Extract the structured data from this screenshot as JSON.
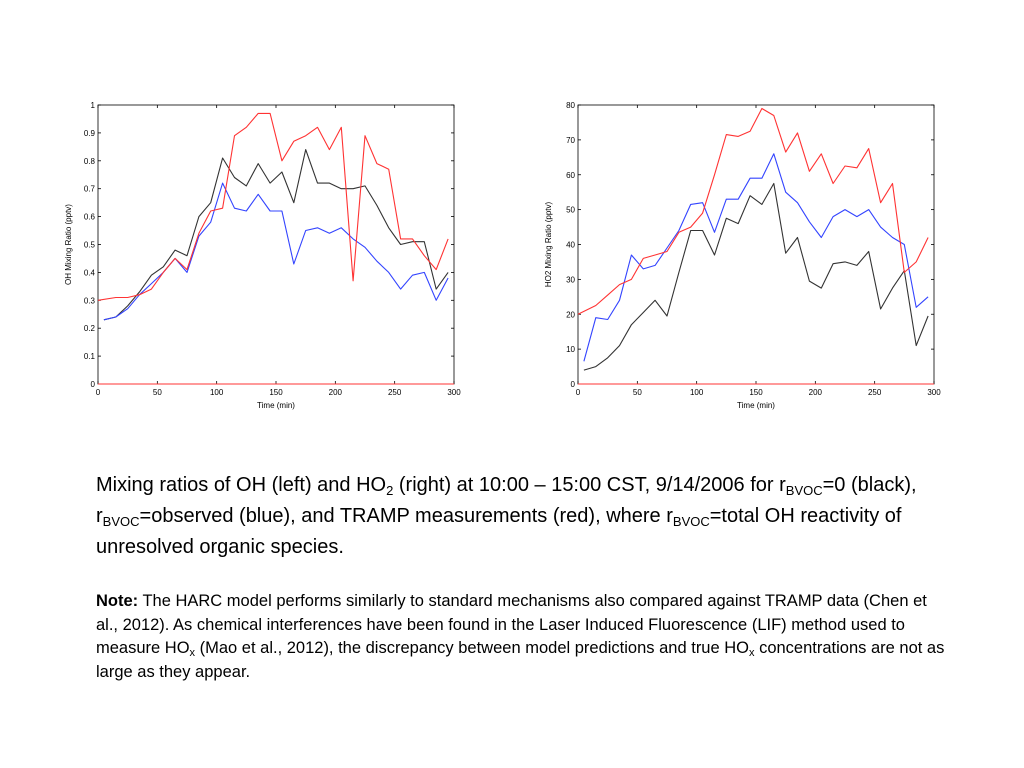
{
  "colors": {
    "black_series": "#333333",
    "blue_series": "#3344ff",
    "red_series": "#ff3333",
    "axis": "#000000"
  },
  "chart_data": [
    {
      "type": "line",
      "xlabel": "Time (min)",
      "ylabel": "OH Mixing Ratio (pptv)",
      "xlim": [
        0,
        300
      ],
      "ylim": [
        0,
        1
      ],
      "xticks": [
        "0",
        "50",
        "100",
        "150",
        "200",
        "250",
        "300"
      ],
      "yticks": [
        "0",
        "0.1",
        "0.2",
        "0.3",
        "0.4",
        "0.5",
        "0.6",
        "0.7",
        "0.8",
        "0.9",
        "1"
      ],
      "grid": false,
      "series": [
        {
          "color": "black",
          "points": [
            [
              5,
              0.23
            ],
            [
              15,
              0.24
            ],
            [
              25,
              0.28
            ],
            [
              35,
              0.33
            ],
            [
              45,
              0.39
            ],
            [
              55,
              0.42
            ],
            [
              65,
              0.48
            ],
            [
              75,
              0.46
            ],
            [
              85,
              0.6
            ],
            [
              95,
              0.65
            ],
            [
              105,
              0.81
            ],
            [
              115,
              0.74
            ],
            [
              125,
              0.71
            ],
            [
              135,
              0.79
            ],
            [
              145,
              0.72
            ],
            [
              155,
              0.76
            ],
            [
              165,
              0.65
            ],
            [
              175,
              0.84
            ],
            [
              185,
              0.72
            ],
            [
              195,
              0.72
            ],
            [
              205,
              0.7
            ],
            [
              215,
              0.7
            ],
            [
              225,
              0.71
            ],
            [
              235,
              0.64
            ],
            [
              245,
              0.56
            ],
            [
              255,
              0.5
            ],
            [
              265,
              0.51
            ],
            [
              275,
              0.51
            ],
            [
              285,
              0.34
            ],
            [
              295,
              0.4
            ]
          ]
        },
        {
          "color": "blue",
          "points": [
            [
              5,
              0.23
            ],
            [
              15,
              0.24
            ],
            [
              25,
              0.27
            ],
            [
              35,
              0.32
            ],
            [
              45,
              0.36
            ],
            [
              55,
              0.4
            ],
            [
              65,
              0.45
            ],
            [
              75,
              0.4
            ],
            [
              85,
              0.53
            ],
            [
              95,
              0.58
            ],
            [
              105,
              0.72
            ],
            [
              115,
              0.63
            ],
            [
              125,
              0.62
            ],
            [
              135,
              0.68
            ],
            [
              145,
              0.62
            ],
            [
              155,
              0.62
            ],
            [
              165,
              0.43
            ],
            [
              175,
              0.55
            ],
            [
              185,
              0.56
            ],
            [
              195,
              0.54
            ],
            [
              205,
              0.56
            ],
            [
              215,
              0.52
            ],
            [
              225,
              0.49
            ],
            [
              235,
              0.44
            ],
            [
              245,
              0.4
            ],
            [
              255,
              0.34
            ],
            [
              265,
              0.39
            ],
            [
              275,
              0.4
            ],
            [
              285,
              0.3
            ],
            [
              295,
              0.38
            ]
          ]
        },
        {
          "color": "red",
          "points": [
            [
              0,
              0.3
            ],
            [
              15,
              0.31
            ],
            [
              25,
              0.31
            ],
            [
              35,
              0.32
            ],
            [
              45,
              0.34
            ],
            [
              55,
              0.4
            ],
            [
              65,
              0.45
            ],
            [
              75,
              0.41
            ],
            [
              85,
              0.54
            ],
            [
              95,
              0.62
            ],
            [
              105,
              0.63
            ],
            [
              115,
              0.89
            ],
            [
              125,
              0.92
            ],
            [
              135,
              0.97
            ],
            [
              145,
              0.97
            ],
            [
              155,
              0.8
            ],
            [
              165,
              0.87
            ],
            [
              175,
              0.89
            ],
            [
              185,
              0.92
            ],
            [
              195,
              0.84
            ],
            [
              205,
              0.92
            ],
            [
              215,
              0.37
            ],
            [
              225,
              0.89
            ],
            [
              235,
              0.79
            ],
            [
              245,
              0.77
            ],
            [
              255,
              0.52
            ],
            [
              265,
              0.52
            ],
            [
              275,
              0.46
            ],
            [
              285,
              0.41
            ],
            [
              295,
              0.52
            ]
          ]
        }
      ]
    },
    {
      "type": "line",
      "xlabel": "Time (min)",
      "ylabel": "HO2 Mixing Ratio (pptv)",
      "xlim": [
        0,
        300
      ],
      "ylim": [
        0,
        80
      ],
      "xticks": [
        "0",
        "50",
        "100",
        "150",
        "200",
        "250",
        "300"
      ],
      "yticks": [
        "0",
        "10",
        "20",
        "30",
        "40",
        "50",
        "60",
        "70",
        "80"
      ],
      "grid": false,
      "series": [
        {
          "color": "black",
          "points": [
            [
              5,
              4
            ],
            [
              15,
              5
            ],
            [
              25,
              7.5
            ],
            [
              35,
              11
            ],
            [
              45,
              17
            ],
            [
              55,
              20.5
            ],
            [
              65,
              24
            ],
            [
              75,
              19.5
            ],
            [
              85,
              32
            ],
            [
              95,
              44
            ],
            [
              105,
              44
            ],
            [
              115,
              37
            ],
            [
              125,
              47.5
            ],
            [
              135,
              46
            ],
            [
              145,
              54
            ],
            [
              155,
              51.5
            ],
            [
              165,
              57.5
            ],
            [
              175,
              37.5
            ],
            [
              185,
              42
            ],
            [
              195,
              29.5
            ],
            [
              205,
              27.5
            ],
            [
              215,
              34.5
            ],
            [
              225,
              35
            ],
            [
              235,
              34
            ],
            [
              245,
              38
            ],
            [
              255,
              21.5
            ],
            [
              265,
              27.5
            ],
            [
              275,
              32.5
            ],
            [
              285,
              11
            ],
            [
              295,
              19.5
            ]
          ]
        },
        {
          "color": "blue",
          "points": [
            [
              5,
              6.5
            ],
            [
              15,
              19
            ],
            [
              25,
              18.5
            ],
            [
              35,
              24
            ],
            [
              45,
              37
            ],
            [
              55,
              33
            ],
            [
              65,
              34
            ],
            [
              75,
              39
            ],
            [
              85,
              44
            ],
            [
              95,
              51.5
            ],
            [
              105,
              52
            ],
            [
              115,
              43.5
            ],
            [
              125,
              53
            ],
            [
              135,
              53
            ],
            [
              145,
              59
            ],
            [
              155,
              59
            ],
            [
              165,
              66
            ],
            [
              175,
              55
            ],
            [
              185,
              52
            ],
            [
              195,
              46.5
            ],
            [
              205,
              42
            ],
            [
              215,
              48
            ],
            [
              225,
              50
            ],
            [
              235,
              48
            ],
            [
              245,
              50
            ],
            [
              255,
              45
            ],
            [
              265,
              42
            ],
            [
              275,
              40
            ],
            [
              285,
              22
            ],
            [
              295,
              25
            ]
          ]
        },
        {
          "color": "red",
          "points": [
            [
              0,
              20
            ],
            [
              15,
              22.5
            ],
            [
              25,
              25.5
            ],
            [
              35,
              28.5
            ],
            [
              45,
              30
            ],
            [
              55,
              36
            ],
            [
              65,
              37
            ],
            [
              75,
              38
            ],
            [
              85,
              43.5
            ],
            [
              95,
              45
            ],
            [
              105,
              49
            ],
            [
              115,
              60
            ],
            [
              125,
              71.5
            ],
            [
              135,
              71
            ],
            [
              145,
              72.5
            ],
            [
              155,
              79
            ],
            [
              165,
              77
            ],
            [
              175,
              66.5
            ],
            [
              185,
              72
            ],
            [
              195,
              61
            ],
            [
              205,
              66
            ],
            [
              215,
              57.5
            ],
            [
              225,
              62.5
            ],
            [
              235,
              62
            ],
            [
              245,
              67.5
            ],
            [
              255,
              52
            ],
            [
              265,
              57.5
            ],
            [
              275,
              32
            ],
            [
              285,
              35
            ],
            [
              295,
              42
            ]
          ]
        }
      ]
    }
  ],
  "caption": {
    "p1": "Mixing ratios of OH (left) and HO",
    "sub1": "2",
    "p2": " (right) at 10:00 – 15:00 CST, 9/14/2006 for r",
    "sub2": "BVOC",
    "p3": "=0 (black), r",
    "sub3": "BVOC",
    "p4": "=observed (blue), and TRAMP measurements (red), where r",
    "sub4": "BVOC",
    "p5": "=total OH reactivity of unresolved organic species."
  },
  "note": {
    "label": "Note:",
    "p1": " The HARC model performs similarly to standard mechanisms also compared against TRAMP data (Chen et al., 2012). As chemical interferences have been found in the Laser Induced Fluorescence (LIF) method used to measure HO",
    "sub1": "x",
    "p2": " (Mao et al., 2012), the discrepancy between model predictions and true HO",
    "sub2": "x",
    "p3": " concentrations are not as large as they appear."
  }
}
